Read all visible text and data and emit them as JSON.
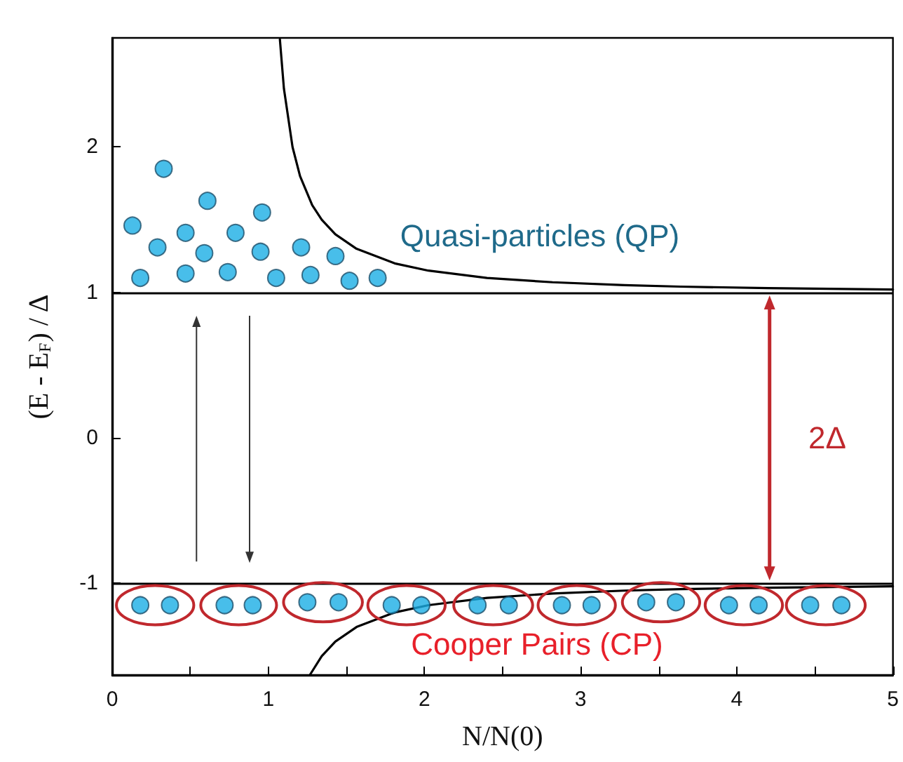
{
  "chart_data": {
    "type": "line",
    "xlabel": "N/N(0)",
    "ylabel": "(E - E$_{F}$) / Δ",
    "xlim": [
      0,
      5
    ],
    "ylim": [
      -1.63,
      2.75
    ],
    "xticks": [
      0,
      {
        "value": 0.5,
        "label": null
      },
      1,
      {
        "value": 1.5,
        "label": null
      },
      2,
      {
        "value": 2.5,
        "label": null
      },
      3,
      {
        "value": 3.5,
        "label": null
      },
      4,
      {
        "value": 4.5,
        "label": null
      },
      5
    ],
    "yticks": [
      -1,
      0,
      1,
      2
    ],
    "grid": false,
    "series": [
      {
        "color": "#000000",
        "marker": "none",
        "x": [
          1.074,
          1.1,
          1.155,
          1.203,
          1.281,
          1.342,
          1.429,
          1.565,
          1.809,
          2.025,
          2.4,
          2.82,
          3.28,
          3.64,
          4.2,
          5
        ],
        "values": [
          2.74,
          2.4,
          2.0,
          1.8,
          1.6,
          1.5,
          1.4,
          1.3,
          1.2,
          1.15,
          1.1,
          1.07,
          1.05,
          1.04,
          1.03,
          1.02
        ]
      },
      {
        "color": "#000000",
        "marker": "none",
        "x": [
          1.266,
          1.342,
          1.429,
          1.565,
          1.809,
          2.025,
          2.4,
          2.82,
          3.28,
          3.64,
          4.2,
          5
        ],
        "values": [
          -1.63,
          -1.5,
          -1.4,
          -1.3,
          -1.2,
          -1.15,
          -1.1,
          -1.07,
          -1.05,
          -1.04,
          -1.03,
          -1.02
        ]
      },
      {
        "type": "scatter",
        "color": "#1aaee5",
        "marker": "circle",
        "x": [
          0.13,
          0.33,
          0.18,
          0.29,
          0.47,
          0.47,
          0.59,
          0.61,
          0.74,
          0.79,
          0.95,
          0.96,
          1.05,
          1.21,
          1.27,
          1.43,
          1.52,
          1.7
        ],
        "values": [
          1.46,
          1.85,
          1.1,
          1.31,
          1.41,
          1.13,
          1.27,
          1.63,
          1.14,
          1.41,
          1.28,
          1.55,
          1.1,
          1.31,
          1.12,
          1.25,
          1.08,
          1.1
        ]
      },
      {
        "type": "scatter",
        "color": "#1aaee5",
        "marker": "circle",
        "x": [
          0.18,
          0.37,
          0.72,
          0.9,
          1.25,
          1.45,
          1.79,
          1.98,
          2.34,
          2.54,
          2.88,
          3.07,
          3.42,
          3.61,
          3.95,
          4.14,
          4.47,
          4.67
        ],
        "values": [
          -1.15,
          -1.15,
          -1.15,
          -1.15,
          -1.13,
          -1.13,
          -1.15,
          -1.15,
          -1.15,
          -1.15,
          -1.15,
          -1.15,
          -1.13,
          -1.13,
          -1.15,
          -1.15,
          -1.15,
          -1.15
        ]
      }
    ],
    "ref_lines": [
      {
        "axis": "y",
        "value": 1,
        "color": "#000000"
      },
      {
        "axis": "y",
        "value": -1,
        "color": "#000000"
      }
    ],
    "annotations": [
      "Quasi-particles (QP)",
      "Cooper Pairs (CP)",
      "2Δ"
    ]
  }
}
